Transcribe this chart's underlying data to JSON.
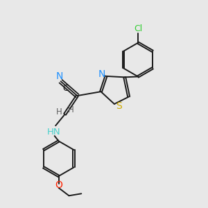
{
  "background_color": "#e8e8e8",
  "bond_color": "#1a1a1a",
  "atoms": {
    "Cl": {
      "color": "#32cd32"
    },
    "N_thiazole": {
      "color": "#1e90ff"
    },
    "S": {
      "color": "#ccaa00"
    },
    "N_cyan": {
      "color": "#1e90ff"
    },
    "C_cyan": {
      "color": "#1a1a1a"
    },
    "NH": {
      "color": "#48d1cc"
    },
    "O": {
      "color": "#ff2200"
    }
  },
  "figsize": [
    3.0,
    3.0
  ],
  "dpi": 100,
  "xlim": [
    0,
    10
  ],
  "ylim": [
    0,
    10
  ]
}
